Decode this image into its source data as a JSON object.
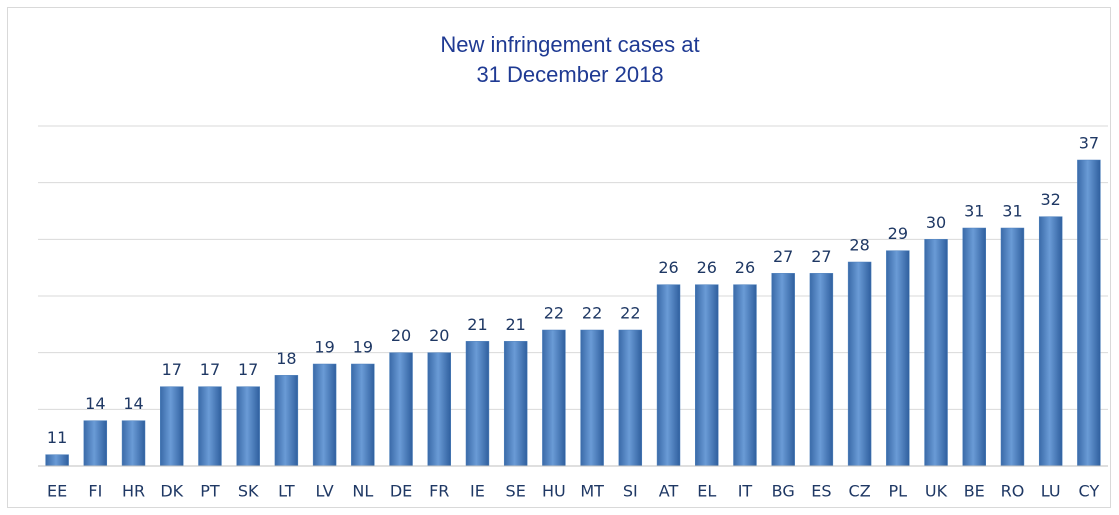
{
  "chart_data": {
    "type": "bar",
    "title": [
      "New infringement cases at",
      "31 December 2018"
    ],
    "categories": [
      "EE",
      "FI",
      "HR",
      "DK",
      "PT",
      "SK",
      "LT",
      "LV",
      "NL",
      "DE",
      "FR",
      "IE",
      "SE",
      "HU",
      "MT",
      "SI",
      "AT",
      "EL",
      "IT",
      "BG",
      "ES",
      "CZ",
      "PL",
      "UK",
      "BE",
      "RO",
      "LU",
      "CY"
    ],
    "values": [
      11,
      14,
      14,
      17,
      17,
      17,
      18,
      19,
      19,
      20,
      20,
      21,
      21,
      22,
      22,
      22,
      26,
      26,
      26,
      27,
      27,
      28,
      29,
      30,
      31,
      31,
      32,
      37
    ],
    "color": "#4a7ebb",
    "ylim": [
      10,
      40
    ],
    "yticks": [
      10,
      15,
      20,
      25,
      30,
      35,
      40
    ],
    "grid": true
  }
}
